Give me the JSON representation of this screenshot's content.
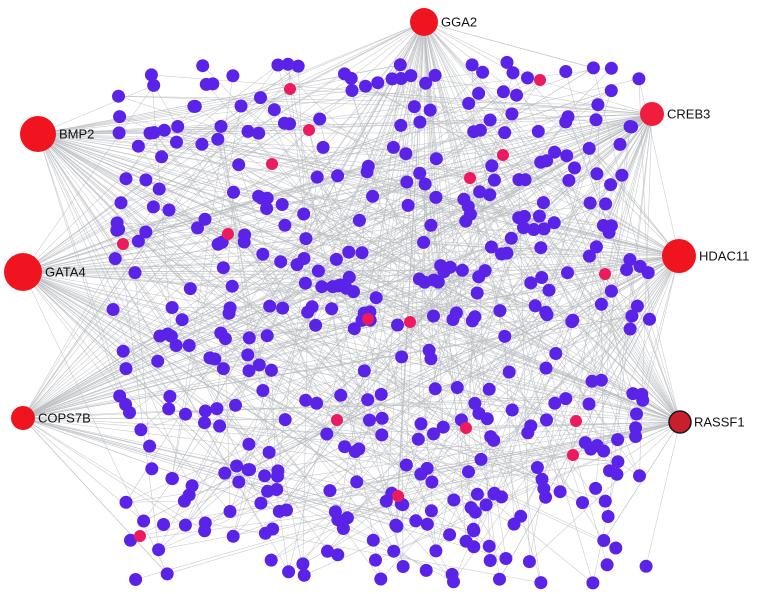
{
  "nodes": [
    {
      "label": "GGA2"
    },
    {
      "label": "BMP2"
    },
    {
      "label": "CREB3"
    },
    {
      "label": "GATA4"
    },
    {
      "label": "HDAC11"
    },
    {
      "label": "COPS7B"
    },
    {
      "label": "RASSF1"
    }
  ]
}
